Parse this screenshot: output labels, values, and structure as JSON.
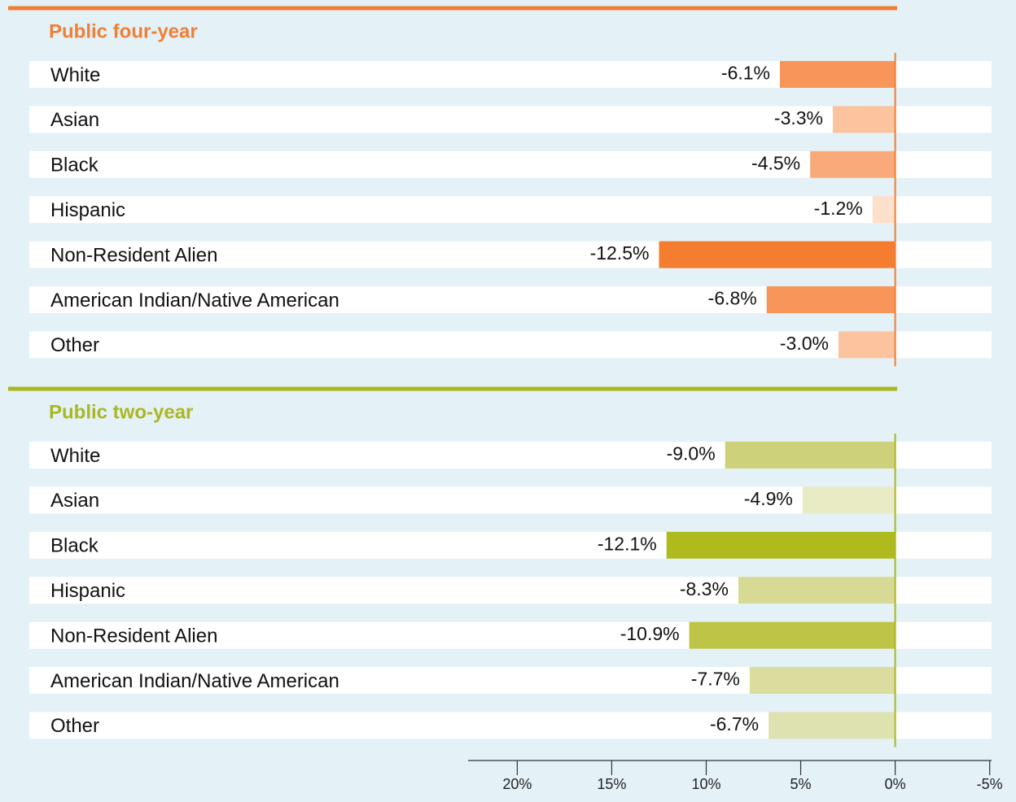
{
  "chart_data": [
    {
      "type": "bar",
      "orientation": "horizontal",
      "title": "Public four-year",
      "color": "#f07f35",
      "categories": [
        "White",
        "Asian",
        "Black",
        "Hispanic",
        "Non-Resident Alien",
        "American Indian/Native American",
        "Other"
      ],
      "values": [
        -6.1,
        -3.3,
        -4.5,
        -1.2,
        -12.5,
        -6.8,
        -3.0
      ],
      "value_labels": [
        "-6.1%",
        "-3.3%",
        "-4.5%",
        "-1.2%",
        "-12.5%",
        "-6.8%",
        "-3.0%"
      ],
      "colors": [
        "#f7955a",
        "#fbc49f",
        "#f9aa7a",
        "#fde0cc",
        "#f47d30",
        "#f7955a",
        "#fbc49f"
      ],
      "xlim": [
        -22.6,
        5.1
      ]
    },
    {
      "type": "bar",
      "orientation": "horizontal",
      "title": "Public two-year",
      "color": "#abb720",
      "categories": [
        "White",
        "Asian",
        "Black",
        "Hispanic",
        "Non-Resident Alien",
        "American Indian/Native American",
        "Other"
      ],
      "values": [
        -9.0,
        -4.9,
        -12.1,
        -8.3,
        -10.9,
        -7.7,
        -6.7
      ],
      "value_labels": [
        "-9.0%",
        "-4.9%",
        "-12.1%",
        "-8.3%",
        "-10.9%",
        "-7.7%",
        "-6.7%"
      ],
      "colors": [
        "#cdd27a",
        "#e9ebc5",
        "#afbb1d",
        "#d7da94",
        "#bec445",
        "#dadd9d",
        "#dee2b0"
      ],
      "xlim": [
        -22.6,
        5.1
      ],
      "xticks": [
        {
          "value": -20,
          "label": "20%"
        },
        {
          "value": -15,
          "label": "15%"
        },
        {
          "value": -10,
          "label": "10%"
        },
        {
          "value": -5,
          "label": "5%"
        },
        {
          "value": 0,
          "label": "0%"
        },
        {
          "value": 5,
          "label": "-5%"
        }
      ]
    }
  ]
}
